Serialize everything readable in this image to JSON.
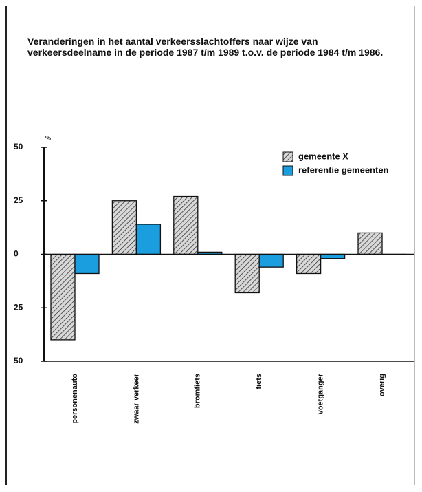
{
  "chart_data": {
    "type": "bar",
    "title": "Veranderingen in het aantal verkeersslachtoffers naar wijze van verkeersdeelname in de periode 1987 t/m 1989 t.o.v. de periode 1984 t/m 1986.",
    "y_label": "%",
    "categories": [
      "personenauto",
      "zwaar verkeer",
      "bromfiets",
      "fiets",
      "voetganger",
      "overig"
    ],
    "series": [
      {
        "name": "gemeente X",
        "color": "#c8c8c8",
        "hatch": true,
        "values": [
          -40,
          25,
          27,
          -18,
          -9,
          10
        ]
      },
      {
        "name": "referentie gemeenten",
        "color": "#1a9ee0",
        "hatch": false,
        "values": [
          -9,
          14,
          1,
          -6,
          -2,
          0
        ]
      }
    ],
    "ylim": [
      -50,
      50
    ],
    "yticks": [
      {
        "value": -50,
        "label": "50"
      },
      {
        "value": -25,
        "label": "25"
      },
      0,
      25,
      50
    ],
    "legend": "upper right"
  }
}
